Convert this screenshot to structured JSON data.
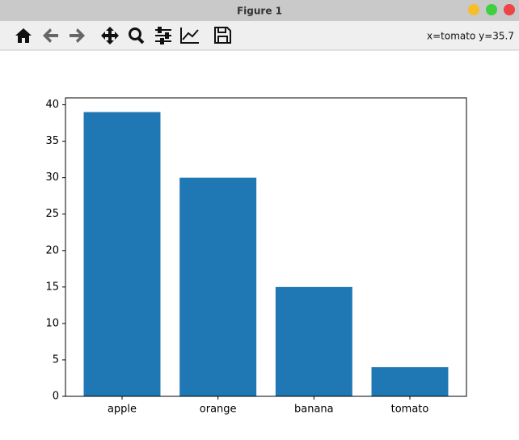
{
  "window": {
    "title": "Figure 1"
  },
  "toolbar": {
    "status": "x=tomato y=35.7"
  },
  "chart_data": {
    "type": "bar",
    "categories": [
      "apple",
      "orange",
      "banana",
      "tomato"
    ],
    "values": [
      39,
      30,
      15,
      4
    ],
    "color": "#1f77b4",
    "ylim": [
      0,
      40.95
    ],
    "yticks": [
      0,
      5,
      10,
      15,
      20,
      25,
      30,
      35,
      40
    ],
    "grid": false
  }
}
